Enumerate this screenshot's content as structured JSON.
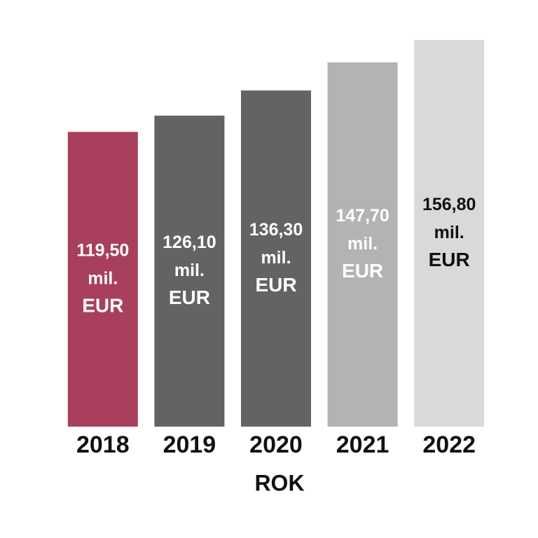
{
  "chart_data": {
    "type": "bar",
    "categories": [
      "2018",
      "2019",
      "2020",
      "2021",
      "2022"
    ],
    "values": [
      119.5,
      126.1,
      136.3,
      147.7,
      156.8
    ],
    "value_labels": [
      "119,50 mil. EUR",
      "126,10 mil. EUR",
      "136,30 mil. EUR",
      "147,70 mil. EUR",
      "156,80 mil. EUR"
    ],
    "colors": [
      "#a83f5d",
      "#636363",
      "#636363",
      "#b3b3b3",
      "#d9d9d9"
    ],
    "label_colors": [
      "#ffffff",
      "#ffffff",
      "#ffffff",
      "#ffffff",
      "#111111"
    ],
    "x_label": "ROK"
  }
}
